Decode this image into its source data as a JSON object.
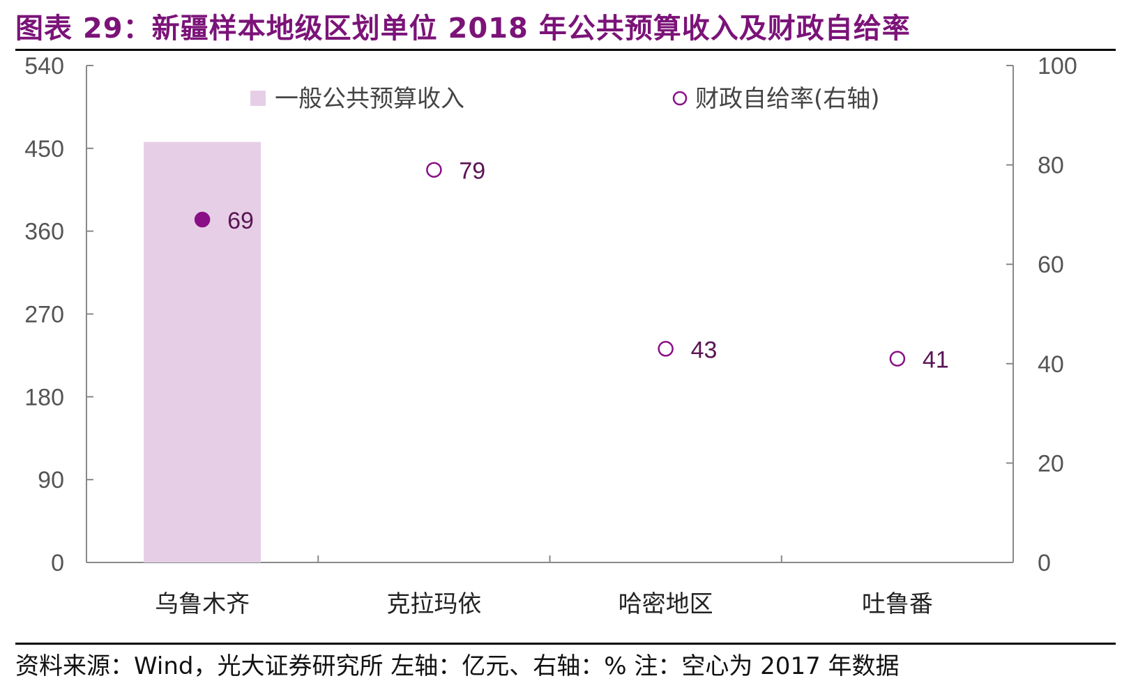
{
  "title": "图表 29：新疆样本地级区划单位 2018 年公共预算收入及财政自给率",
  "source": "资料来源：Wind，光大证券研究所   左轴：亿元、右轴：%   注：空心为 2017 年数据",
  "colors": {
    "title": "#7b1378",
    "bar": "#e6cfe6",
    "marker": "#8a0f86",
    "axis": "#888888"
  },
  "chart_data": {
    "type": "bar",
    "categories": [
      "乌鲁木齐",
      "克拉玛依",
      "哈密地区",
      "吐鲁番"
    ],
    "series": [
      {
        "name": "一般公共预算收入",
        "type": "bar",
        "axis": "left",
        "values": [
          457,
          null,
          null,
          null
        ]
      },
      {
        "name": "财政自给率(右轴)",
        "type": "scatter",
        "axis": "right",
        "values": [
          69,
          79,
          43,
          41
        ],
        "hollow": [
          false,
          true,
          true,
          true
        ]
      }
    ],
    "ylim_left": [
      0,
      540
    ],
    "yticks_left": [
      0,
      90,
      180,
      270,
      360,
      450,
      540
    ],
    "ylim_right": [
      0,
      100
    ],
    "yticks_right": [
      0,
      20,
      40,
      60,
      80,
      100
    ],
    "data_labels": [
      "69",
      "79",
      "43",
      "41"
    ],
    "legend": {
      "placement": "top",
      "items": [
        "一般公共预算收入",
        "财政自给率(右轴)"
      ]
    }
  }
}
